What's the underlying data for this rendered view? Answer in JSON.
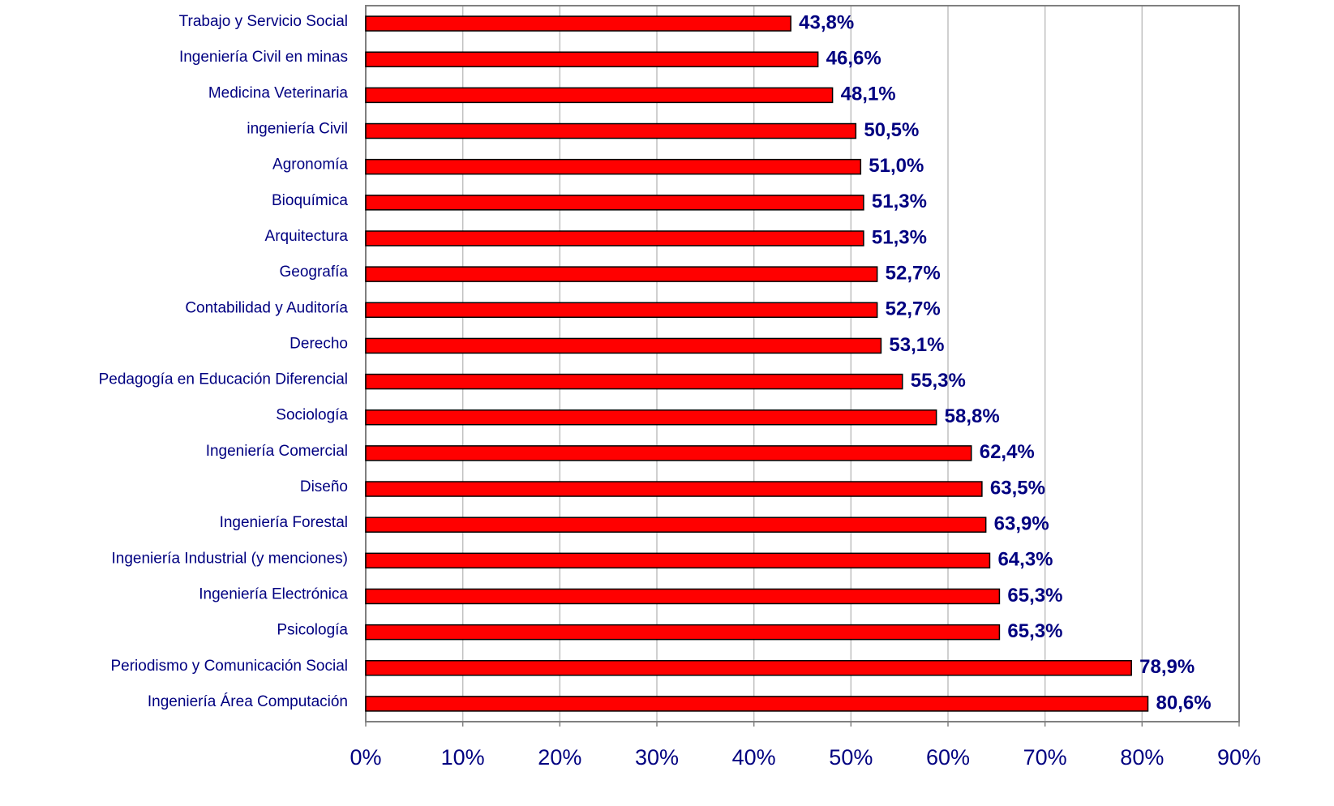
{
  "chart_data": {
    "type": "barh",
    "categories": [
      "Trabajo y Servicio Social",
      "Ingeniería Civil en minas",
      "Medicina Veterinaria",
      "ingeniería Civil",
      "Agronomía",
      "Bioquímica",
      "Arquitectura",
      "Geografía",
      "Contabilidad y Auditoría",
      "Derecho",
      "Pedagogía en Educación Diferencial",
      "Sociología",
      "Ingeniería Comercial",
      "Diseño",
      "Ingeniería Forestal",
      "Ingeniería Industrial (y menciones)",
      "Ingeniería Electrónica",
      "Psicología",
      "Periodismo y Comunicación Social",
      "Ingeniería Área Computación"
    ],
    "values": [
      43.8,
      46.6,
      48.1,
      50.5,
      51.0,
      51.3,
      51.3,
      52.7,
      52.7,
      53.1,
      55.3,
      58.8,
      62.4,
      63.5,
      63.9,
      64.3,
      65.3,
      65.3,
      78.9,
      80.6
    ],
    "value_labels": [
      "43,8%",
      "46,6%",
      "48,1%",
      "50,5%",
      "51,0%",
      "51,3%",
      "51,3%",
      "52,7%",
      "52,7%",
      "53,1%",
      "55,3%",
      "58,8%",
      "62,4%",
      "63,5%",
      "63,9%",
      "64,3%",
      "65,3%",
      "65,3%",
      "78,9%",
      "80,6%"
    ],
    "color": "#ff0000",
    "xlim": [
      0,
      90
    ],
    "xticks": [
      {
        "value": 0,
        "label": "0%"
      },
      {
        "value": 10,
        "label": "10%"
      },
      {
        "value": 20,
        "label": "20%"
      },
      {
        "value": 30,
        "label": "30%"
      },
      {
        "value": 40,
        "label": "40%"
      },
      {
        "value": 50,
        "label": "50%"
      },
      {
        "value": 60,
        "label": "60%"
      },
      {
        "value": 70,
        "label": "70%"
      },
      {
        "value": 80,
        "label": "80%"
      },
      {
        "value": 90,
        "label": "90%"
      }
    ],
    "grid": true
  }
}
